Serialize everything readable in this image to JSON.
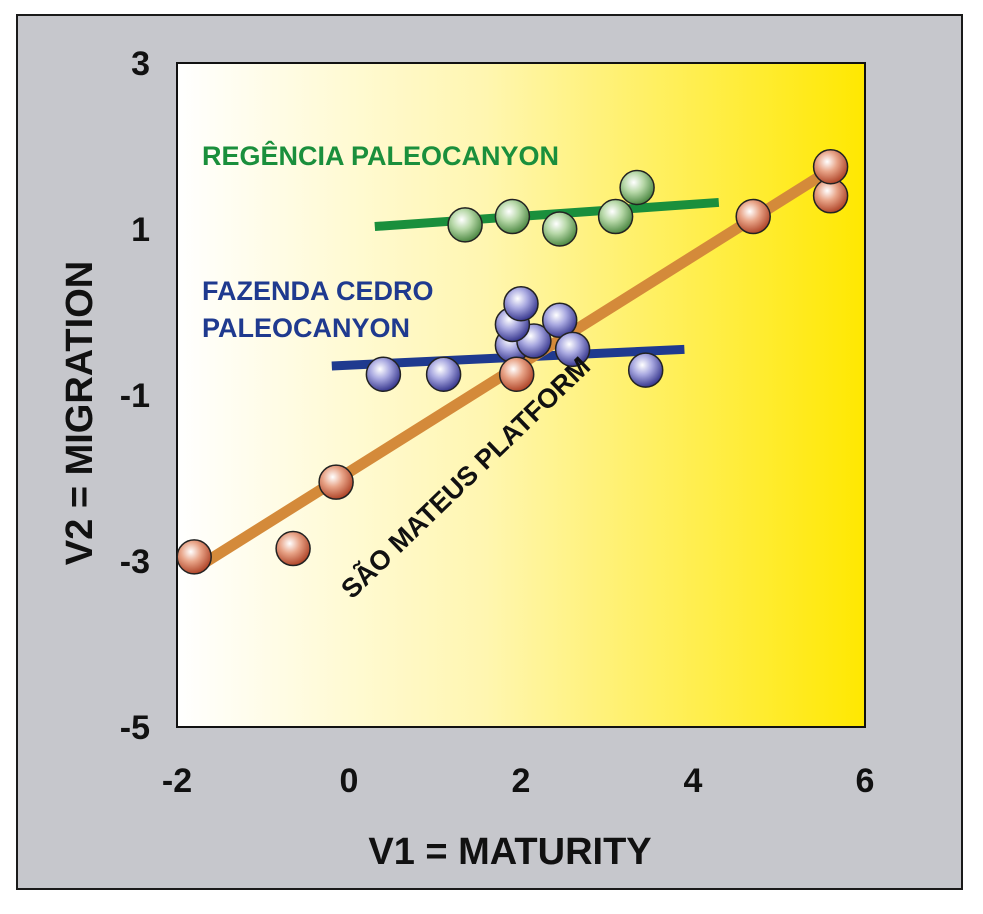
{
  "chart_data": {
    "type": "scatter",
    "xlabel": "V1 = MATURITY",
    "ylabel": "V2 = MIGRATION",
    "xlim": [
      -2,
      6
    ],
    "ylim": [
      -5,
      3
    ],
    "x_ticks": [
      -2,
      0,
      2,
      4,
      6
    ],
    "y_ticks": [
      3,
      1,
      -1,
      -3,
      -5
    ],
    "grid": false,
    "background": "white-to-yellow gradient (left to right)",
    "series": [
      {
        "name": "REGÊNCIA PALEOCANYON",
        "color": "#1a8f3c",
        "marker_color": "#8fbf80",
        "points": [
          {
            "x": 1.35,
            "y": 1.05
          },
          {
            "x": 1.9,
            "y": 1.15
          },
          {
            "x": 2.45,
            "y": 1.0
          },
          {
            "x": 3.1,
            "y": 1.15
          },
          {
            "x": 3.35,
            "y": 1.5
          }
        ],
        "trend_line": {
          "x": [
            0.3,
            4.3
          ],
          "y": [
            1.03,
            1.32
          ]
        }
      },
      {
        "name": "FAZENDA CEDRO\nPALEOCANYON",
        "color": "#1f3a8f",
        "marker_color": "#7f7fc7",
        "points": [
          {
            "x": 0.4,
            "y": -0.75
          },
          {
            "x": 1.1,
            "y": -0.75
          },
          {
            "x": 1.9,
            "y": -0.4
          },
          {
            "x": 2.15,
            "y": -0.35
          },
          {
            "x": 1.9,
            "y": -0.15
          },
          {
            "x": 2.0,
            "y": 0.1
          },
          {
            "x": 2.45,
            "y": -0.1
          },
          {
            "x": 2.6,
            "y": -0.45
          },
          {
            "x": 3.45,
            "y": -0.7
          }
        ],
        "trend_line": {
          "x": [
            -0.2,
            3.9
          ],
          "y": [
            -0.65,
            -0.45
          ]
        }
      },
      {
        "name": "SÃO MATEUS PLATFORM",
        "color": "#d48a3a",
        "marker_color": "#d07a5a",
        "points": [
          {
            "x": -1.8,
            "y": -2.95
          },
          {
            "x": -0.65,
            "y": -2.85
          },
          {
            "x": -0.15,
            "y": -2.05
          },
          {
            "x": 1.95,
            "y": -0.75
          },
          {
            "x": 4.7,
            "y": 1.15
          },
          {
            "x": 5.6,
            "y": 1.4
          },
          {
            "x": 5.6,
            "y": 1.75
          }
        ],
        "trend_line": {
          "x": [
            -1.8,
            5.5
          ],
          "y": [
            -3.1,
            1.65
          ]
        }
      }
    ]
  }
}
